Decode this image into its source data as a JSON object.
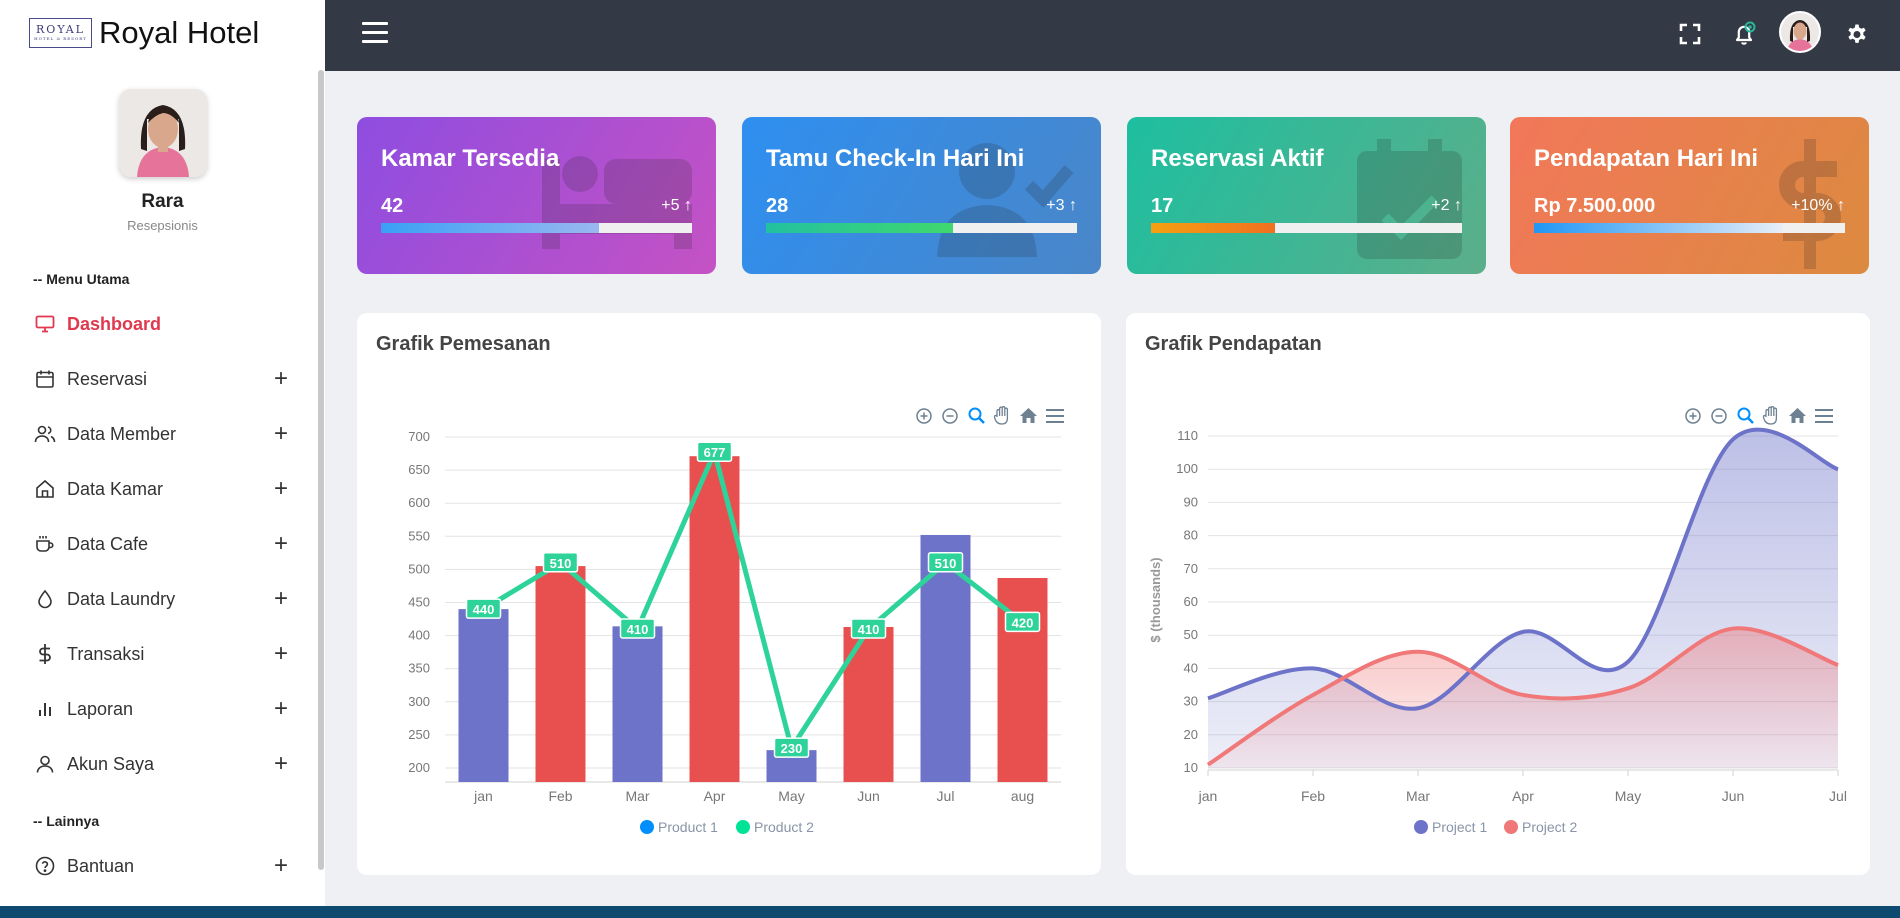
{
  "brand": {
    "logo_line1": "ROYAL",
    "logo_line2": "HOTEL & RESORT",
    "name": "Royal Hotel"
  },
  "profile": {
    "name": "Rara",
    "role": "Resepsionis"
  },
  "sidebar": {
    "section_main": "-- Menu Utama",
    "section_other": "-- Lainnya",
    "items": [
      {
        "label": "Dashboard",
        "icon": "monitor-icon",
        "active": true
      },
      {
        "label": "Reservasi",
        "icon": "calendar-icon"
      },
      {
        "label": "Data Member",
        "icon": "users-icon"
      },
      {
        "label": "Data Kamar",
        "icon": "home-icon"
      },
      {
        "label": "Data Cafe",
        "icon": "cup-icon"
      },
      {
        "label": "Data Laundry",
        "icon": "droplet-icon"
      },
      {
        "label": "Transaksi",
        "icon": "dollar-icon"
      },
      {
        "label": "Laporan",
        "icon": "bar-chart-icon"
      },
      {
        "label": "Akun Saya",
        "icon": "user-icon"
      }
    ],
    "other_items": [
      {
        "label": "Bantuan",
        "icon": "help-circle-icon"
      }
    ],
    "plus": "+"
  },
  "cards": [
    {
      "title": "Kamar Tersedia",
      "value": "42",
      "delta": "+5",
      "progress": 0.7,
      "icon": "bed-icon"
    },
    {
      "title": "Tamu Check-In Hari Ini",
      "value": "28",
      "delta": "+3",
      "progress": 0.6,
      "icon": "user-check-icon"
    },
    {
      "title": "Reservasi Aktif",
      "value": "17",
      "delta": "+2",
      "progress": 0.4,
      "icon": "calendar-check-icon"
    },
    {
      "title": "Pendapatan Hari Ini",
      "value": "Rp 7.500.000",
      "delta": "+10%",
      "progress": 0.8,
      "icon": "dollar-sign-icon"
    }
  ],
  "colors": {
    "card1": [
      "#8e4de0",
      "#c552c4"
    ],
    "card2": [
      "#2e8ff0",
      "#4a86c8"
    ],
    "card3": [
      "#1dbfa0",
      "#5cae8a"
    ],
    "card4": [
      "#f2775a",
      "#dc8a3f"
    ],
    "bar_purple": "#6c73c8",
    "bar_red": "#e85050",
    "line_green": "#2ed39a",
    "project1": "#6c73c8",
    "project2": "#f07878",
    "accent_red": "#e0394f"
  },
  "chart_data": [
    {
      "type": "bar",
      "title": "Grafik Pemesanan",
      "categories": [
        "jan",
        "Feb",
        "Mar",
        "Apr",
        "May",
        "Jun",
        "Jul",
        "aug"
      ],
      "series": [
        {
          "name": "Product 1",
          "type": "bar",
          "values": [
            440,
            505,
            414,
            671,
            227,
            413,
            552,
            487
          ]
        },
        {
          "name": "Product 2",
          "type": "line",
          "values": [
            440,
            510,
            410,
            677,
            230,
            410,
            510,
            420
          ]
        }
      ],
      "ylim": [
        200,
        700
      ],
      "yticks": [
        200,
        250,
        300,
        350,
        400,
        450,
        500,
        550,
        600,
        650,
        700
      ],
      "legend": [
        "Product 1",
        "Product 2"
      ]
    },
    {
      "type": "area",
      "title": "Grafik Pendapatan",
      "categories": [
        "jan",
        "Feb",
        "Mar",
        "Apr",
        "May",
        "Jun",
        "Jul"
      ],
      "series": [
        {
          "name": "Project 1",
          "values": [
            31,
            40,
            28,
            51,
            42,
            109,
            100
          ]
        },
        {
          "name": "Project 2",
          "values": [
            11,
            32,
            45,
            32,
            34,
            52,
            41
          ]
        }
      ],
      "ylabel": "$ (thousands)",
      "ylim": [
        10,
        110
      ],
      "yticks": [
        10,
        20,
        30,
        40,
        50,
        60,
        70,
        80,
        90,
        100,
        110
      ],
      "legend": [
        "Project 1",
        "Project 2"
      ]
    }
  ]
}
